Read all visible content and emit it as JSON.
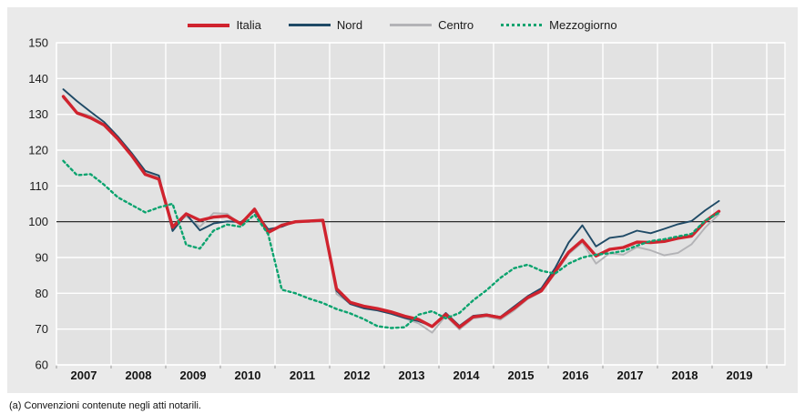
{
  "footnote": "(a) Convenzioni contenute negli atti notarili.",
  "colors": {
    "italia": "#d0232e",
    "nord": "#1f4a66",
    "centro": "#b3b3b6",
    "mezzogiorno": "#0ba36e",
    "baseline": "#111111",
    "panel_bg": "#eaeaea",
    "plot_bg": "#e2e2e2",
    "grid": "#ffffff",
    "tick": "#999999"
  },
  "chart_data": {
    "type": "line",
    "x_unit": "quarterly",
    "x_start_year": 2007,
    "points_per_year": 4,
    "x_tick_labels": [
      "2007",
      "2008",
      "2009",
      "2010",
      "2011",
      "2012",
      "2013",
      "2014",
      "2015",
      "2016",
      "2017",
      "2018",
      "2019"
    ],
    "y_ticks": [
      60,
      70,
      80,
      90,
      100,
      110,
      120,
      130,
      140,
      150
    ],
    "ylim": [
      60,
      150
    ],
    "baseline_y": 100,
    "grid": true,
    "legend_position": "top",
    "series": [
      {
        "name": "Italia",
        "color": "#d0232e",
        "style": "solid",
        "width": 3.4,
        "values": [
          135.0,
          130.4,
          129.0,
          127.0,
          123.1,
          118.5,
          113.2,
          111.9,
          98.5,
          102.2,
          100.4,
          101.3,
          101.6,
          99.4,
          103.5,
          97.0,
          99.0,
          100.0,
          100.2,
          100.4,
          81.3,
          77.5,
          76.4,
          75.7,
          74.8,
          73.6,
          72.7,
          70.7,
          74.1,
          70.5,
          73.4,
          73.9,
          73.2,
          75.8,
          78.8,
          80.7,
          86.0,
          91.5,
          94.8,
          90.4,
          92.3,
          92.8,
          94.3,
          94.2,
          94.5,
          95.4,
          96.0,
          100.1,
          102.9
        ]
      },
      {
        "name": "Nord",
        "color": "#1f4a66",
        "style": "solid",
        "width": 1.9,
        "values": [
          137.0,
          133.7,
          130.7,
          127.8,
          123.8,
          119.2,
          114.2,
          112.9,
          97.4,
          102.1,
          97.6,
          99.5,
          100.1,
          99.9,
          103.0,
          97.9,
          98.6,
          100.1,
          100.0,
          100.3,
          80.7,
          77.0,
          75.8,
          75.2,
          74.3,
          73.1,
          72.2,
          70.8,
          74.5,
          70.9,
          73.7,
          74.1,
          73.4,
          76.3,
          79.2,
          81.4,
          87.0,
          94.2,
          99.0,
          93.1,
          95.5,
          96.0,
          97.5,
          96.8,
          98.0,
          99.3,
          100.2,
          103.2,
          105.8
        ]
      },
      {
        "name": "Centro",
        "color": "#b3b3b6",
        "style": "solid",
        "width": 1.9,
        "values": [
          134.5,
          130.6,
          129.6,
          127.2,
          123.4,
          118.8,
          113.7,
          112.4,
          99.0,
          101.5,
          98.6,
          102.4,
          102.2,
          99.2,
          103.8,
          97.2,
          99.3,
          99.8,
          100.0,
          100.1,
          79.8,
          77.2,
          76.0,
          75.4,
          74.3,
          73.0,
          71.6,
          69.0,
          73.7,
          69.9,
          73.0,
          73.5,
          72.6,
          75.2,
          78.4,
          80.4,
          85.5,
          91.0,
          94.2,
          88.3,
          91.2,
          90.8,
          92.9,
          92.0,
          90.6,
          91.3,
          93.7,
          98.4,
          102.1
        ]
      },
      {
        "name": "Mezzogiorno",
        "color": "#0ba36e",
        "style": "dotted",
        "width": 2.4,
        "values": [
          117.0,
          113.0,
          113.3,
          110.3,
          106.8,
          104.7,
          102.6,
          104.0,
          105.0,
          93.5,
          92.5,
          97.5,
          99.2,
          98.6,
          102.0,
          96.5,
          81.0,
          80.0,
          78.5,
          77.3,
          75.6,
          74.4,
          72.8,
          70.8,
          70.3,
          70.5,
          74.0,
          75.0,
          73.0,
          74.5,
          78.0,
          80.9,
          84.3,
          87.0,
          88.0,
          86.3,
          85.5,
          88.3,
          90.0,
          90.8,
          91.2,
          91.8,
          93.3,
          94.6,
          95.1,
          95.9,
          96.6,
          100.3,
          102.5
        ]
      }
    ]
  }
}
